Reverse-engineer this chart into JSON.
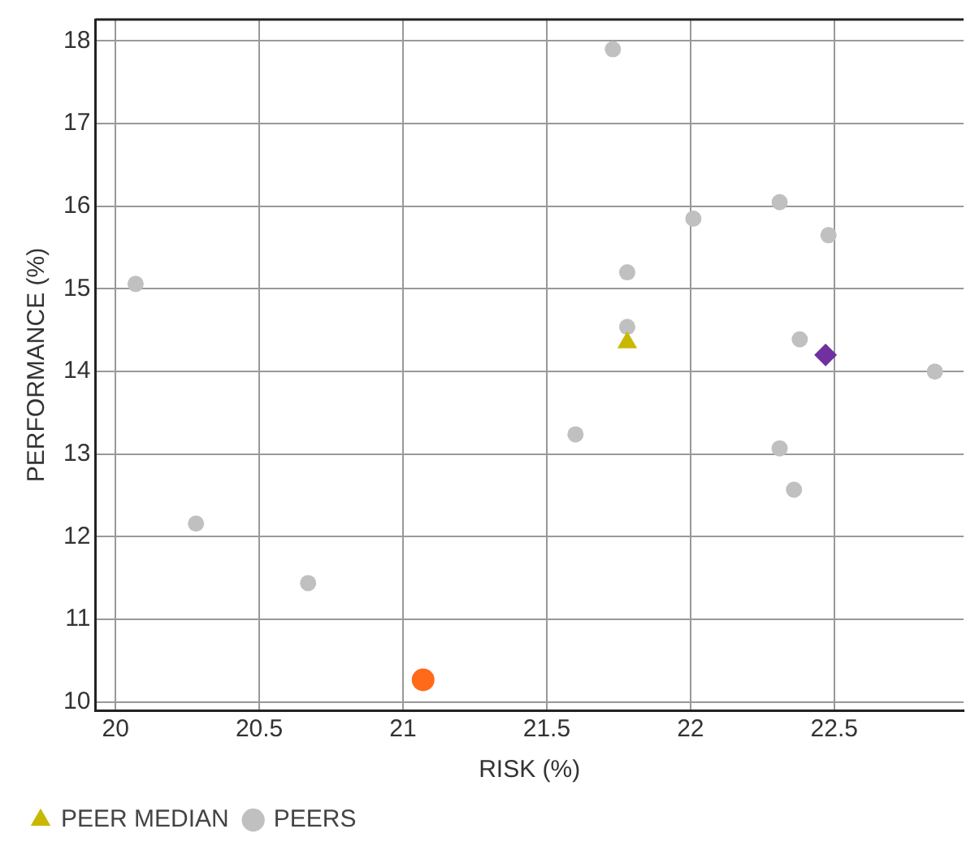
{
  "chart_data": {
    "type": "scatter",
    "xlabel": "RISK (%)",
    "ylabel": "PERFORMANCE (%)",
    "xlim": [
      19.93,
      22.95
    ],
    "xticks": [
      20,
      20.5,
      21,
      21.5,
      22,
      22.5
    ],
    "ylim": [
      9.9,
      18.26
    ],
    "yticks": [
      10,
      11,
      12,
      13,
      14,
      15,
      16,
      17,
      18
    ],
    "grid": true,
    "legend": "bottom",
    "series": [
      {
        "color": "#ff6a1a",
        "marker": "circle",
        "x": [
          21.07
        ],
        "values": [
          10.27
        ]
      },
      {
        "color": "#7030a0",
        "marker": "diamond",
        "x": [
          22.47
        ],
        "values": [
          14.2
        ]
      },
      {
        "name": "PEER MEDIAN",
        "color": "#c8b800",
        "marker": "triangle",
        "x": [
          21.78
        ],
        "values": [
          14.35
        ]
      },
      {
        "name": "PEERS",
        "color": "#c0c0c0",
        "marker": "circle",
        "x": [
          20.07,
          20.28,
          20.67,
          21.73,
          21.78,
          21.78,
          22.01,
          22.31,
          22.48,
          22.38,
          22.85,
          21.6,
          22.31,
          22.36
        ],
        "values": [
          15.06,
          12.16,
          11.44,
          17.9,
          15.2,
          14.54,
          15.85,
          16.05,
          15.65,
          14.39,
          14.0,
          13.24,
          13.07,
          12.57
        ]
      }
    ]
  }
}
